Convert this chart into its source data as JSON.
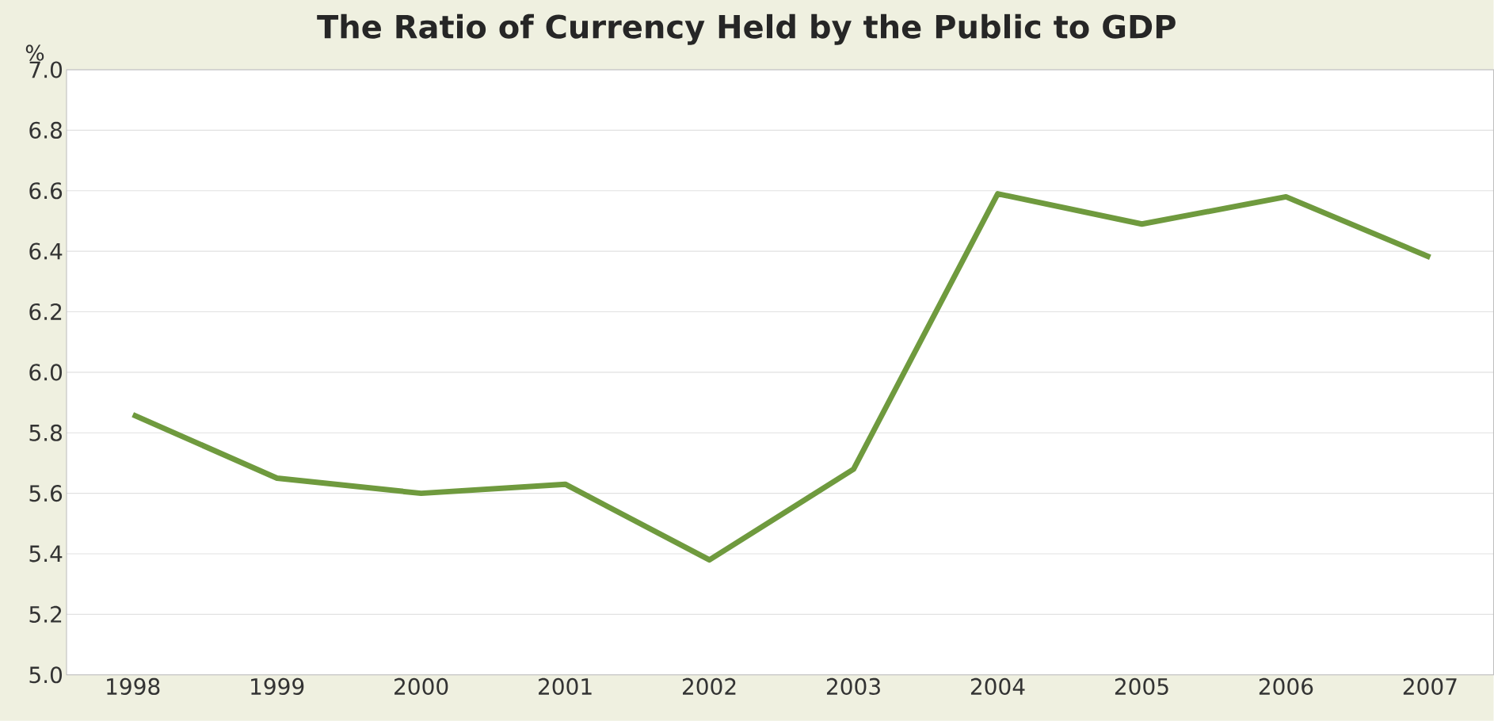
{
  "chart_data": {
    "type": "line",
    "title": "The Ratio of Currency Held by the Public to GDP",
    "ylabel": "%",
    "categories": [
      "1998",
      "1999",
      "2000",
      "2001",
      "2002",
      "2003",
      "2004",
      "2005",
      "2006",
      "2007"
    ],
    "series": [
      {
        "color": "#6f9a3e",
        "values": [
          5.86,
          5.65,
          5.6,
          5.63,
          5.38,
          5.68,
          6.59,
          6.49,
          6.58,
          6.38
        ]
      }
    ],
    "ylim": [
      5.0,
      7.0
    ],
    "yticks": [
      {
        "value": 5.0,
        "label": "5.0"
      },
      {
        "value": 5.2,
        "label": "5.2"
      },
      {
        "value": 5.4,
        "label": "5.4"
      },
      {
        "value": 5.6,
        "label": "5.6"
      },
      {
        "value": 5.8,
        "label": "5.8"
      },
      {
        "value": 6.0,
        "label": "6.0"
      },
      {
        "value": 6.2,
        "label": "6.2"
      },
      {
        "value": 6.4,
        "label": "6.4"
      },
      {
        "value": 6.6,
        "label": "6.6"
      },
      {
        "value": 6.8,
        "label": "6.8"
      },
      {
        "value": 7.0,
        "label": "7.0"
      }
    ],
    "grid": "y",
    "marker": "none",
    "line_style": "solid"
  }
}
